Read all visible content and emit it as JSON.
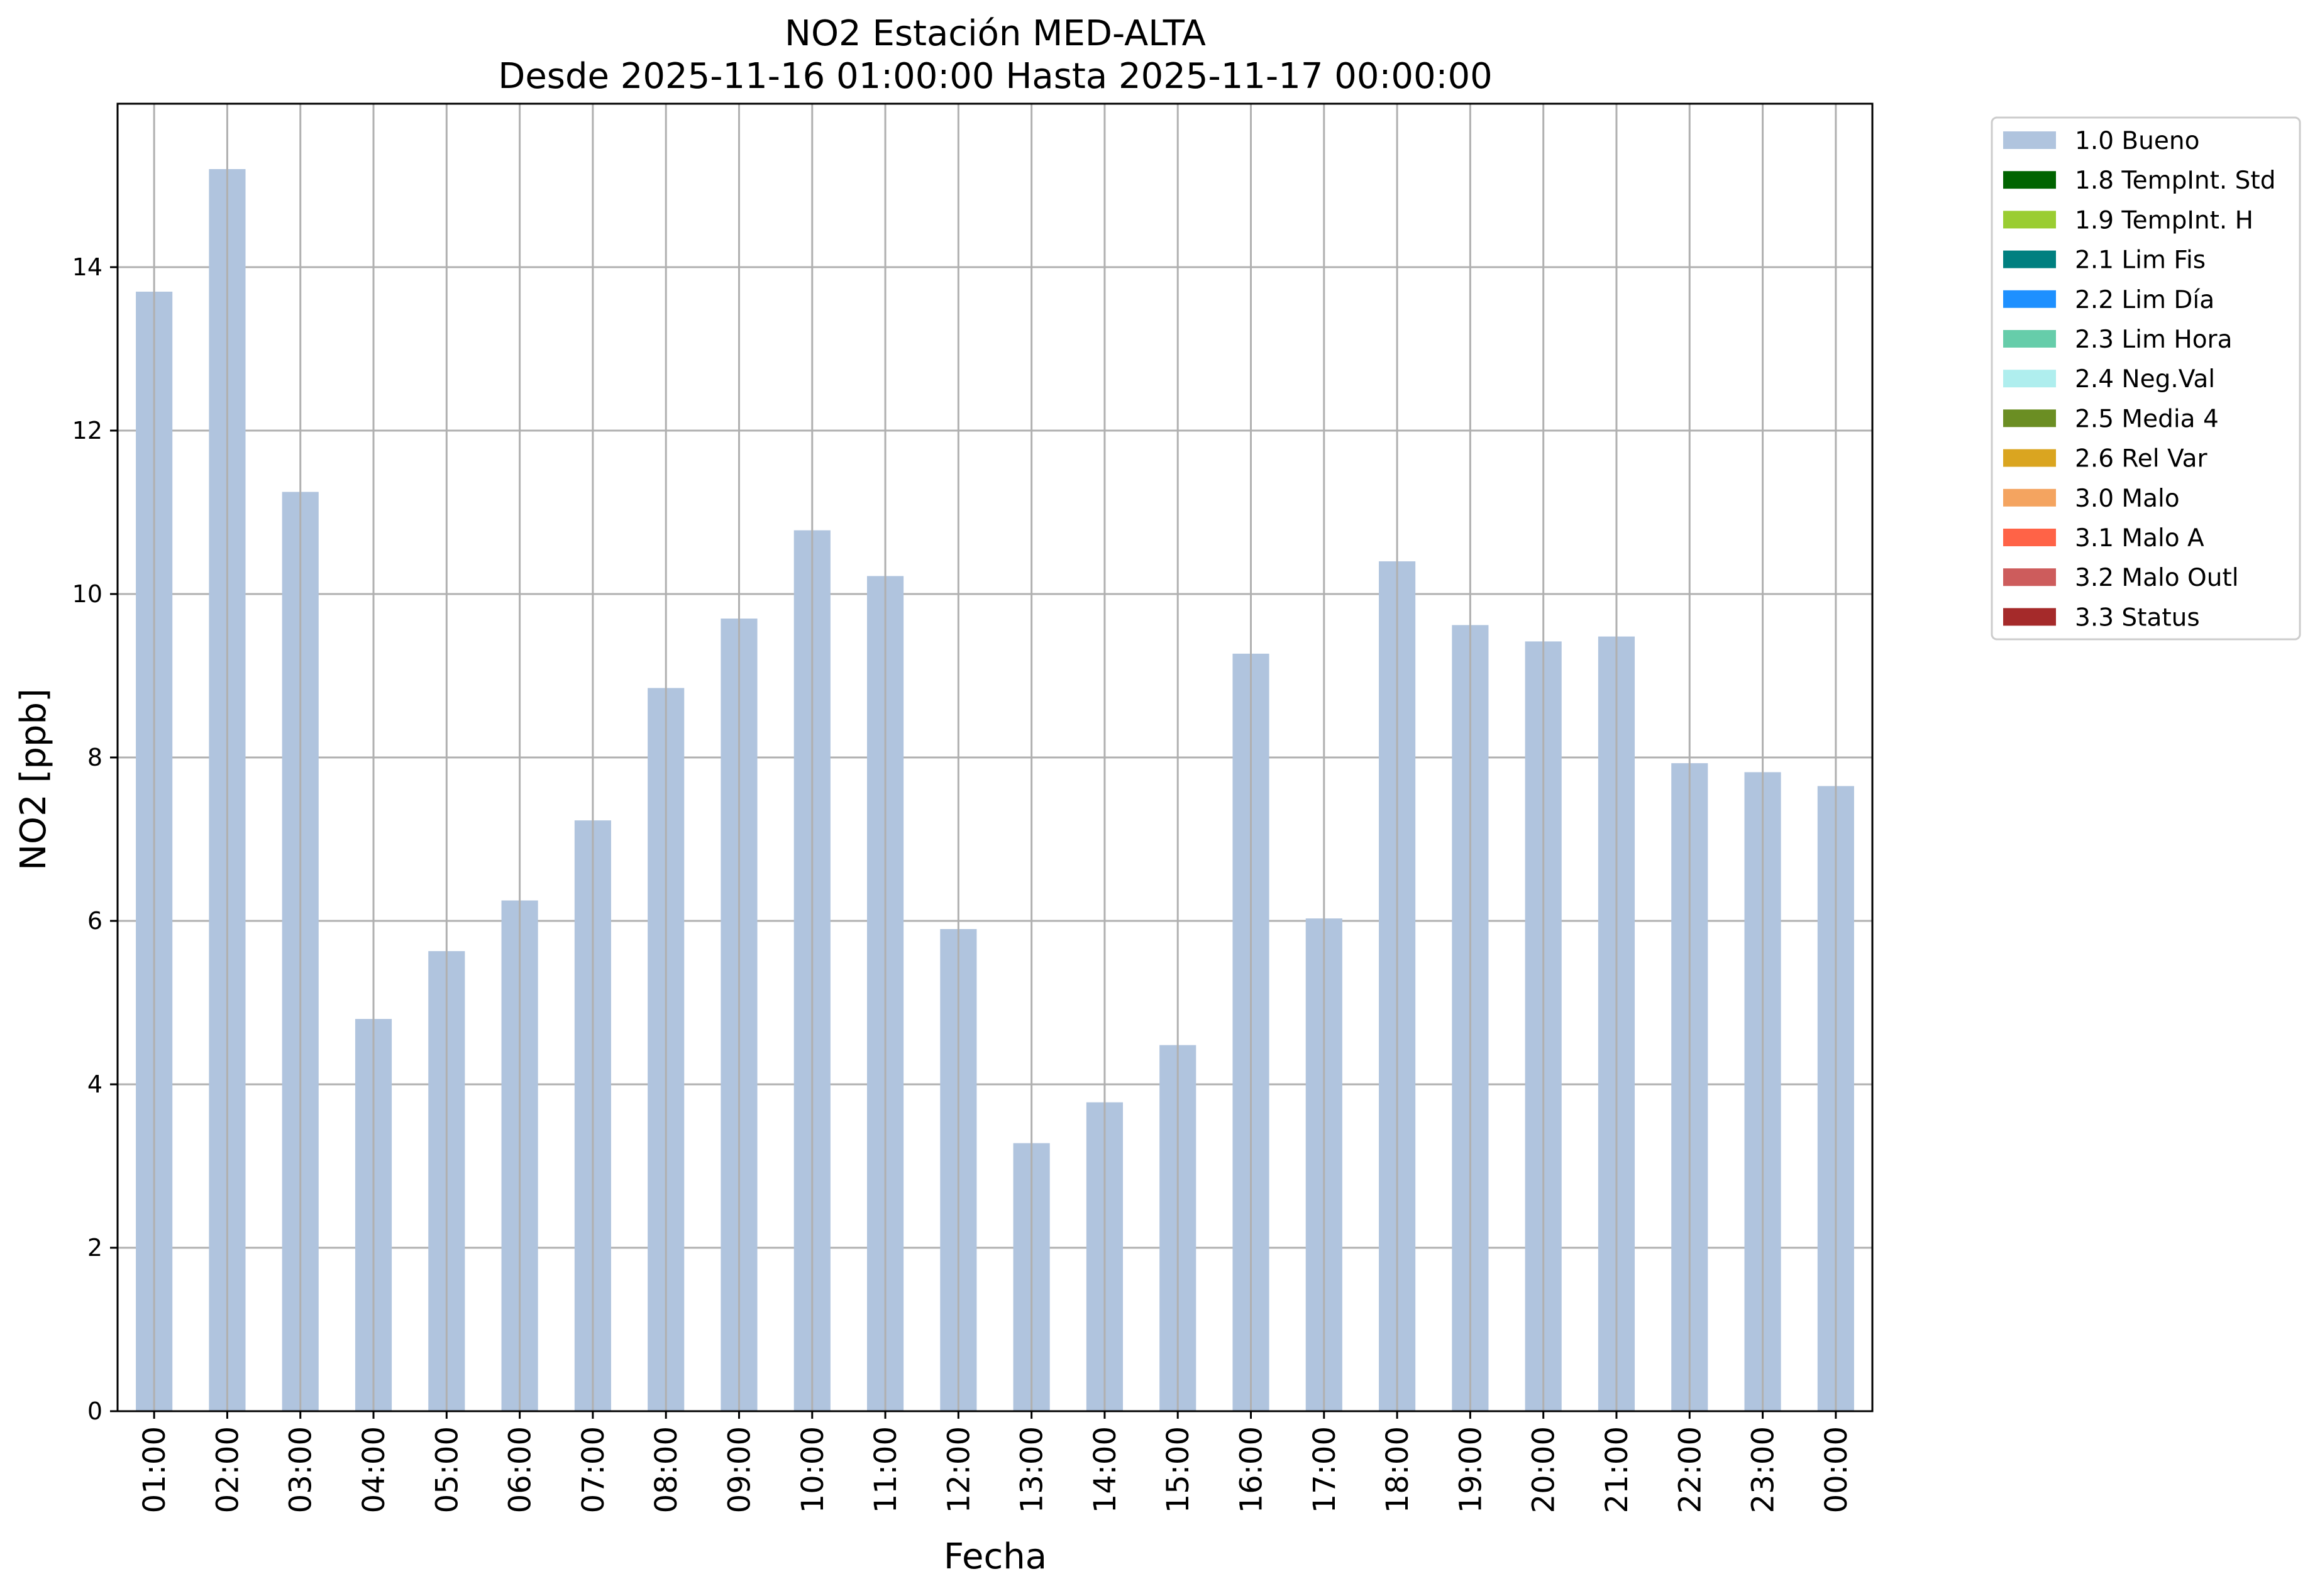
{
  "chart_data": {
    "type": "bar",
    "title": [
      "NO2 Estación MED-ALTA",
      "Desde 2025-11-16 01:00:00 Hasta 2025-11-17 00:00:00"
    ],
    "xlabel": "Fecha",
    "ylabel": "NO2 [ppb]",
    "ylim": [
      0,
      16
    ],
    "yticks": [
      0,
      2,
      4,
      6,
      8,
      10,
      12,
      14
    ],
    "grid": true,
    "legend_position": "outside-top-right",
    "categories": [
      "01:00",
      "02:00",
      "03:00",
      "04:00",
      "05:00",
      "06:00",
      "07:00",
      "08:00",
      "09:00",
      "10:00",
      "11:00",
      "12:00",
      "13:00",
      "14:00",
      "15:00",
      "16:00",
      "17:00",
      "18:00",
      "19:00",
      "20:00",
      "21:00",
      "22:00",
      "23:00",
      "00:00"
    ],
    "series": [
      {
        "name": "1.0 Bueno",
        "color": "#b0c4de",
        "values": [
          13.7,
          15.2,
          11.25,
          4.8,
          5.63,
          6.25,
          7.23,
          8.85,
          9.7,
          10.78,
          10.22,
          5.9,
          3.28,
          3.78,
          4.48,
          9.27,
          6.03,
          10.4,
          9.62,
          9.42,
          9.48,
          7.93,
          7.82,
          7.65
        ]
      }
    ],
    "legend": [
      {
        "label": "1.0 Bueno",
        "color": "#b0c4de"
      },
      {
        "label": "1.8 TempInt. Std",
        "color": "#006400"
      },
      {
        "label": "1.9 TempInt. H",
        "color": "#9acd32"
      },
      {
        "label": "2.1 Lim Fis",
        "color": "#008080"
      },
      {
        "label": "2.2 Lim Día",
        "color": "#1e90ff"
      },
      {
        "label": "2.3 Lim Hora",
        "color": "#66cdaa"
      },
      {
        "label": "2.4 Neg.Val",
        "color": "#afeeee"
      },
      {
        "label": "2.5 Media 4",
        "color": "#6b8e23"
      },
      {
        "label": "2.6 Rel Var",
        "color": "#daa520"
      },
      {
        "label": "3.0 Malo",
        "color": "#f4a460"
      },
      {
        "label": "3.1 Malo A",
        "color": "#ff6347"
      },
      {
        "label": "3.2 Malo Outl",
        "color": "#cd5c5c"
      },
      {
        "label": "3.3 Status",
        "color": "#a52a2a"
      }
    ],
    "gridColor": "#b0b0b0"
  }
}
